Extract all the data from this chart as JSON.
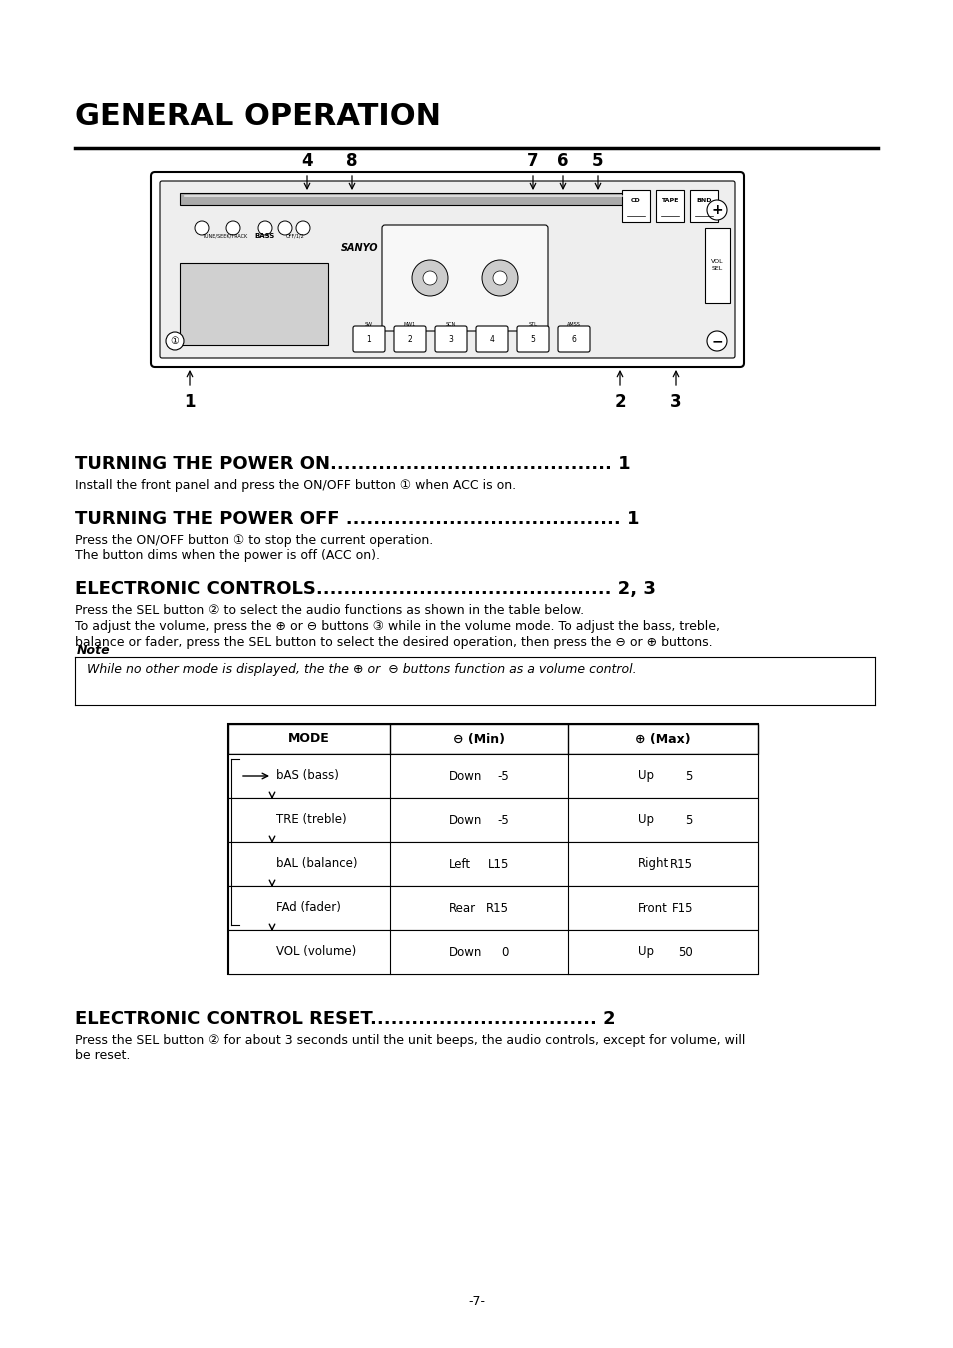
{
  "title": "GENERAL OPERATION",
  "bg_color": "#ffffff",
  "page_number": "-7-",
  "section1_heading": "TURNING THE POWER ON",
  "section1_dots": "......................................... 1",
  "section1_body": "Install the front panel and press the ON/OFF button ① when ACC is on.",
  "section2_heading": "TURNING THE POWER OFF",
  "section2_dots": " ........................................ 1",
  "section2_body1": "Press the ON/OFF button ① to stop the current operation.",
  "section2_body2": "The button dims when the power is off (ACC on).",
  "section3_heading": "ELECTRONIC CONTROLS",
  "section3_dots": "........................................... 2, 3",
  "section3_body1": "Press the SEL button ② to select the audio functions as shown in the table below.",
  "section3_body2": "To adjust the volume, press the ⊕ or ⊖ buttons ③ while in the volume mode. To adjust the bass, treble,",
  "section3_body3": "balance or fader, press the SEL button to select the desired operation, then press the ⊖ or ⊕ buttons.",
  "note_label": "Note",
  "note_body": "While no other mode is displayed, the the ⊕ or  ⊖ buttons function as a volume control.",
  "table_header": [
    "MODE",
    "⊖ (Min)",
    "⊕ (Max)"
  ],
  "table_modes": [
    "bAS (bass)",
    "TRE (treble)",
    "bAL (balance)",
    "FAd (fader)",
    "VOL (volume)"
  ],
  "table_min": [
    [
      "Down",
      "-5"
    ],
    [
      "Down",
      "-5"
    ],
    [
      "Left",
      "L15"
    ],
    [
      "Rear",
      "R15"
    ],
    [
      "Down",
      "0"
    ]
  ],
  "table_max": [
    [
      "Up",
      "5"
    ],
    [
      "Up",
      "5"
    ],
    [
      "Right",
      "R15"
    ],
    [
      "Front",
      "F15"
    ],
    [
      "Up",
      "50"
    ]
  ],
  "section4_heading": "ELECTRONIC CONTROL RESET",
  "section4_dots": "................................. 2",
  "section4_body1": "Press the SEL button ② for about 3 seconds until the unit beeps, the audio controls, except for volume, will",
  "section4_body2": "be reset.",
  "top_labels": [
    "4",
    "8",
    "7",
    "6",
    "5"
  ],
  "bot_labels": [
    "1",
    "2",
    "3"
  ]
}
